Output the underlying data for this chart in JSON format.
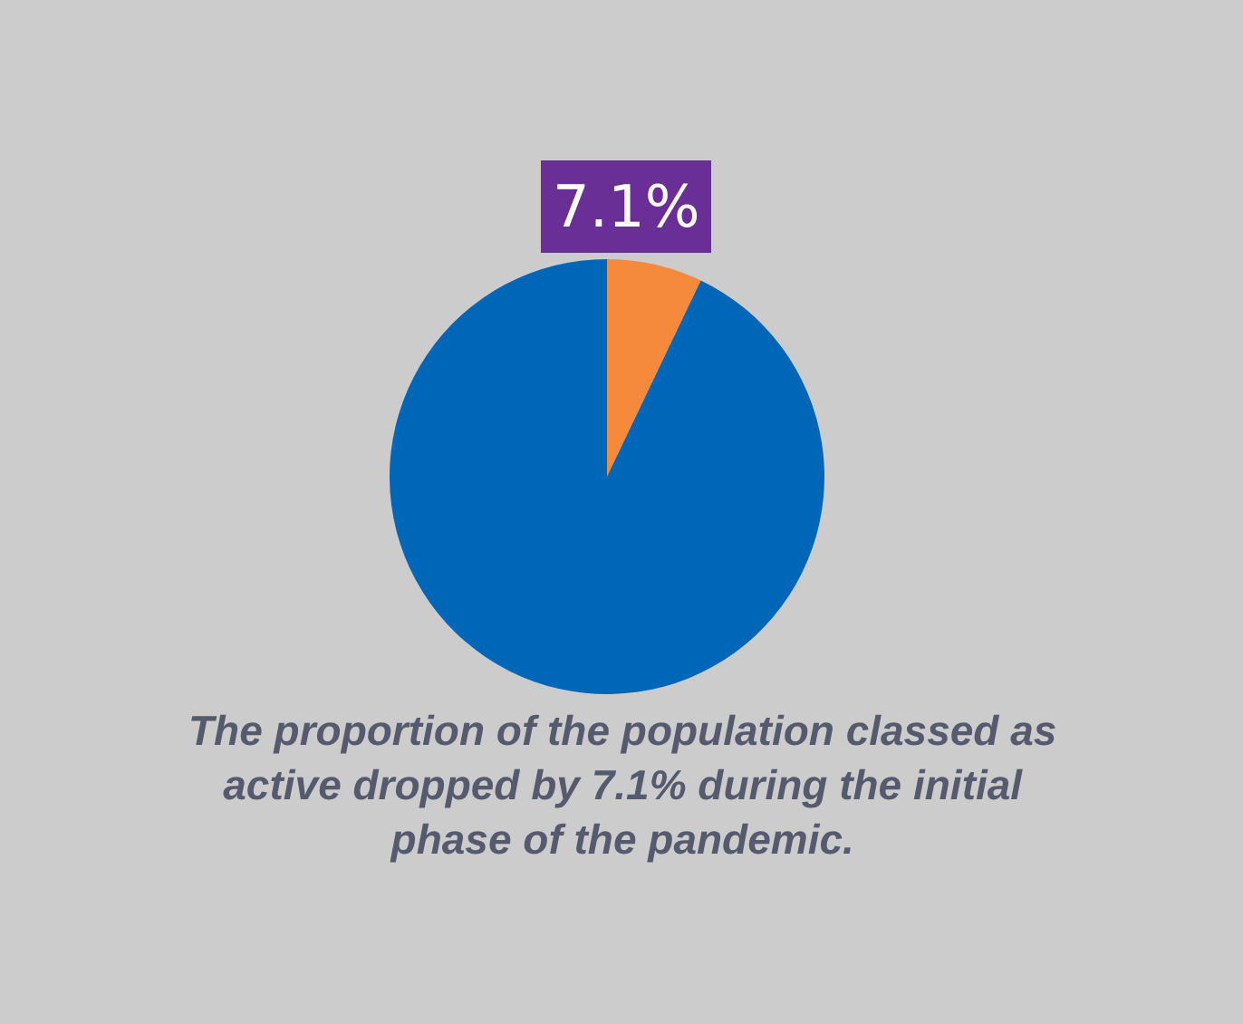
{
  "chart_data": {
    "type": "pie",
    "categories": [
      null,
      null
    ],
    "values": [
      7.1,
      92.9
    ],
    "colors": [
      "#f58a3c",
      "#0066b8"
    ],
    "value_labels": [
      "7.1%",
      null
    ],
    "annotations": [
      "The proportion of the population classed as\nactive dropped by 7.1% during the initial\nphase of the pandemic."
    ],
    "legend": false
  }
}
